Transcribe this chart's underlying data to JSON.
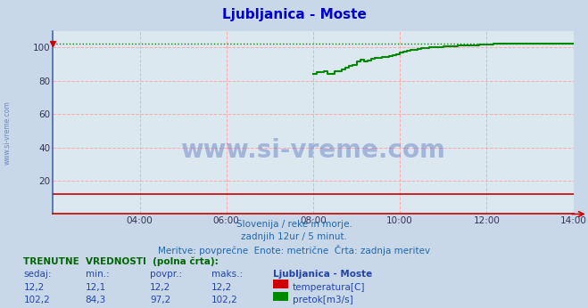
{
  "title": "Ljubljanica - Moste",
  "title_color": "#0000cc",
  "bg_color": "#c8d8e8",
  "plot_bg_color": "#dce8f0",
  "grid_color": "#ffaaaa",
  "xlim": [
    0,
    144
  ],
  "ylim": [
    0,
    110
  ],
  "yticks": [
    20,
    40,
    60,
    80,
    100
  ],
  "xtick_labels": [
    "04:00",
    "06:00",
    "08:00",
    "10:00",
    "12:00",
    "14:00"
  ],
  "xtick_positions": [
    24,
    48,
    72,
    96,
    120,
    144
  ],
  "watermark_text": "www.si-vreme.com",
  "watermark_color": "#2244aa",
  "watermark_alpha": 0.3,
  "side_text": "www.si-vreme.com",
  "side_color": "#2244aa",
  "subtitle_lines": [
    "Slovenija / reke in morje.",
    "zadnjih 12ur / 5 minut.",
    "Meritve: povprečne  Enote: metrične  Črta: zadnja meritev"
  ],
  "subtitle_color": "#2266aa",
  "temperature_color": "#cc0000",
  "flow_color": "#008800",
  "temp_value": 12.2,
  "temp_min": 12.1,
  "temp_avg": 12.2,
  "temp_max": 12.2,
  "flow_value": 102.2,
  "flow_min": 84.3,
  "flow_avg": 97.2,
  "flow_max": 102.2,
  "label_color": "#2244aa",
  "table_header_color": "#006600",
  "legend_title": "Ljubljanica - Moste",
  "border_color": "#4466aa",
  "arrow_color": "#cc0000",
  "temp_line_x": [
    0,
    144
  ],
  "temp_line_y": [
    12.2,
    12.2
  ],
  "flow_max_line_y": 102.2,
  "flow_data_x": [
    72,
    73,
    74,
    75,
    76,
    77,
    78,
    79,
    80,
    81,
    82,
    83,
    84,
    85,
    86,
    87,
    88,
    89,
    90,
    91,
    92,
    93,
    94,
    95,
    96,
    97,
    98,
    99,
    100,
    101,
    102,
    103,
    104,
    106,
    108,
    110,
    112,
    114,
    116,
    118,
    120,
    122,
    124,
    126,
    128,
    130,
    132,
    134,
    136,
    138,
    140,
    142,
    144
  ],
  "flow_data_y": [
    84.3,
    84.3,
    85.0,
    85.0,
    85.5,
    84.3,
    84.3,
    85.5,
    86.0,
    87.0,
    88.0,
    89.0,
    89.5,
    91.5,
    92.5,
    91.5,
    92.0,
    93.0,
    93.5,
    94.0,
    94.5,
    94.5,
    95.0,
    95.5,
    96.0,
    97.0,
    97.5,
    98.0,
    98.5,
    98.8,
    99.0,
    99.5,
    99.8,
    100.0,
    100.3,
    100.5,
    100.8,
    101.0,
    101.2,
    101.5,
    101.8,
    102.0,
    102.2,
    102.2,
    102.2,
    102.2,
    102.2,
    102.2,
    102.2,
    102.2,
    102.2,
    102.2,
    102.2
  ]
}
